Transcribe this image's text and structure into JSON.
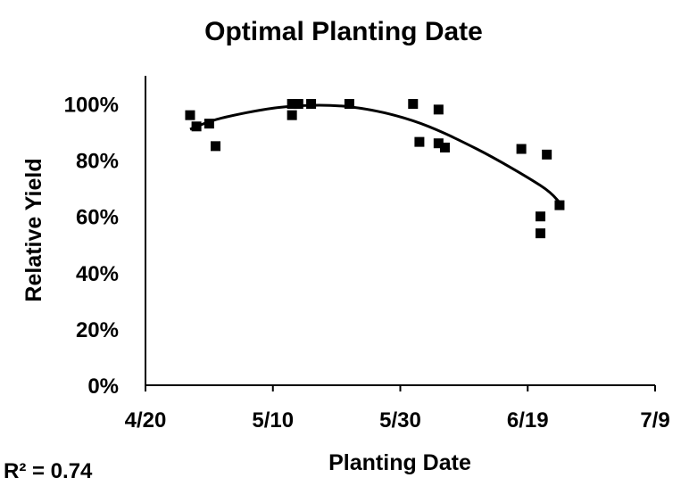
{
  "chart_data": {
    "type": "scatter",
    "title": "Optimal Planting Date",
    "xlabel": "Planting Date",
    "ylabel": "Relative Yield",
    "x_ticks": [
      "4/20",
      "5/10",
      "5/30",
      "6/19",
      "7/9"
    ],
    "y_ticks": [
      "0%",
      "20%",
      "40%",
      "60%",
      "80%",
      "100%"
    ],
    "xlim": [
      "4/20",
      "7/9"
    ],
    "ylim": [
      0,
      110
    ],
    "grid": false,
    "legend": "none",
    "annotation": "R² = 0.74",
    "points": [
      {
        "x": "4/27",
        "y": 96
      },
      {
        "x": "4/28",
        "y": 92
      },
      {
        "x": "4/30",
        "y": 93
      },
      {
        "x": "5/1",
        "y": 85
      },
      {
        "x": "5/13",
        "y": 96
      },
      {
        "x": "5/13",
        "y": 100
      },
      {
        "x": "5/14",
        "y": 100
      },
      {
        "x": "5/16",
        "y": 100
      },
      {
        "x": "5/22",
        "y": 100
      },
      {
        "x": "6/1",
        "y": 100
      },
      {
        "x": "6/2",
        "y": 86.5
      },
      {
        "x": "6/5",
        "y": 98
      },
      {
        "x": "6/5",
        "y": 86
      },
      {
        "x": "6/6",
        "y": 84.5
      },
      {
        "x": "6/18",
        "y": 84
      },
      {
        "x": "6/21",
        "y": 60
      },
      {
        "x": "6/21",
        "y": 54
      },
      {
        "x": "6/22",
        "y": 82
      },
      {
        "x": "6/24",
        "y": 64
      }
    ],
    "trendline": {
      "type": "polynomial-2",
      "points": [
        {
          "x": "4/27",
          "y": 91
        },
        {
          "x": "5/2",
          "y": 95
        },
        {
          "x": "5/12",
          "y": 99
        },
        {
          "x": "5/22",
          "y": 99
        },
        {
          "x": "6/1",
          "y": 94
        },
        {
          "x": "6/11",
          "y": 84
        },
        {
          "x": "6/21",
          "y": 71
        },
        {
          "x": "6/24",
          "y": 65
        }
      ]
    }
  }
}
